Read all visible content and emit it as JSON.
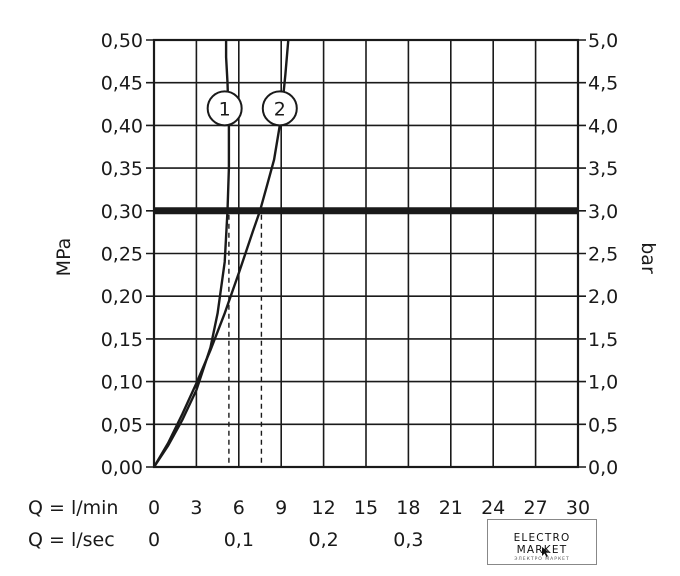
{
  "chart_data": {
    "type": "line",
    "title": "",
    "ylabel_left": "MPa",
    "ylabel_right": "bar",
    "x_row_labels": [
      "Q = l/min",
      "Q = l/sec"
    ],
    "x_lmin_ticks": [
      "0",
      "3",
      "6",
      "9",
      "12",
      "15",
      "18",
      "21",
      "24",
      "27",
      "30"
    ],
    "x_lsec_ticks": [
      {
        "value": 0,
        "label": "0"
      },
      {
        "value": 0.1,
        "label": "0,1"
      },
      {
        "value": 0.2,
        "label": "0,2"
      },
      {
        "value": 0.3,
        "label": "0,3"
      }
    ],
    "y_left_ticks": [
      "0,00",
      "0,05",
      "0,10",
      "0,15",
      "0,20",
      "0,25",
      "0,30",
      "0,35",
      "0,40",
      "0,45",
      "0,50"
    ],
    "y_right_ticks": [
      "0,0",
      "0,5",
      "1,0",
      "1,5",
      "2,0",
      "2,5",
      "3,0",
      "3,5",
      "4,0",
      "4,5",
      "5,0"
    ],
    "xlim": [
      0,
      30
    ],
    "ylim": [
      0,
      0.5
    ],
    "grid": true,
    "series": [
      {
        "name": "1",
        "x": [
          0,
          1,
          2,
          3,
          4,
          4.5,
          5,
          5.2,
          5.3,
          5.3,
          5.2,
          5.1,
          5.1
        ],
        "y": [
          0,
          0.025,
          0.055,
          0.09,
          0.14,
          0.18,
          0.24,
          0.3,
          0.35,
          0.4,
          0.45,
          0.48,
          0.5
        ]
      },
      {
        "name": "2",
        "x": [
          0,
          1,
          2,
          3,
          4,
          5,
          6,
          7,
          7.5,
          8,
          8.5,
          9,
          9.3,
          9.5
        ],
        "y": [
          0,
          0.028,
          0.062,
          0.098,
          0.137,
          0.18,
          0.227,
          0.276,
          0.3,
          0.33,
          0.36,
          0.41,
          0.46,
          0.5
        ]
      }
    ],
    "threshold_y": 0.3,
    "dashed_x": [
      5.3,
      7.6
    ],
    "marker_positions": [
      {
        "label": "1",
        "x": 5.0,
        "y": 0.42
      },
      {
        "label": "2",
        "x": 8.9,
        "y": 0.42
      }
    ]
  },
  "watermark": {
    "main": "ELECTRO MARKET",
    "sub": "ЭЛЕКТРО МАРКЕТ",
    "cursor_icon": "arrow-cursor-icon"
  }
}
